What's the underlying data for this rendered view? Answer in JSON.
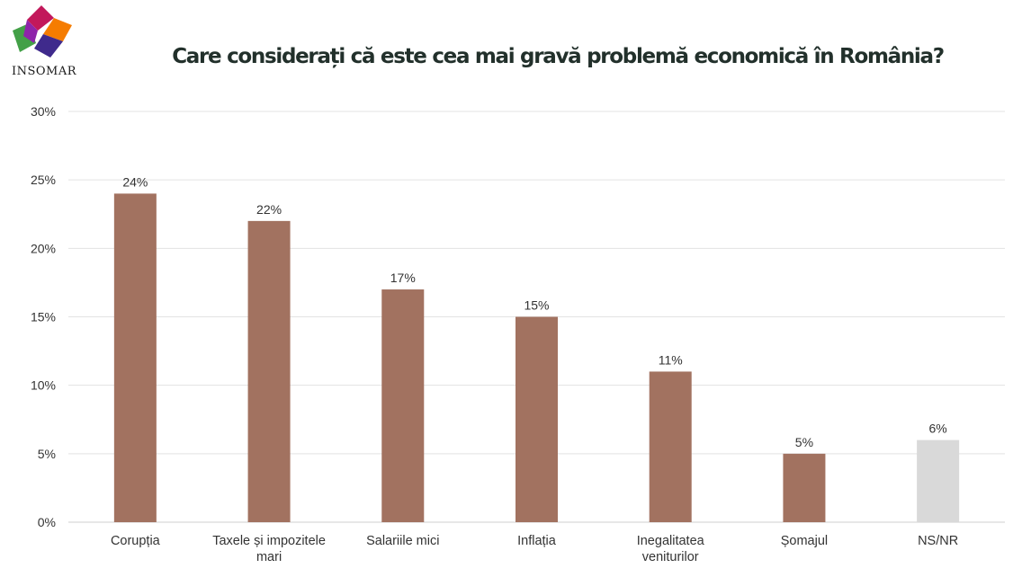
{
  "brand": {
    "name": "INSOMAR"
  },
  "chart_data": {
    "type": "bar",
    "title": "Care considerați că este cea mai gravă problemă economică în România?",
    "categories": [
      [
        "Corupția"
      ],
      [
        "Taxele și impozitele",
        "mari"
      ],
      [
        "Salariile mici"
      ],
      [
        "Inflația"
      ],
      [
        "Inegalitatea",
        "veniturilor"
      ],
      [
        "Șomajul"
      ],
      [
        "NS/NR"
      ]
    ],
    "values": [
      24,
      22,
      17,
      15,
      11,
      5,
      6
    ],
    "data_labels": [
      "24%",
      "22%",
      "17%",
      "15%",
      "11%",
      "5%",
      "6%"
    ],
    "bar_colors": [
      "#a27260",
      "#a27260",
      "#a27260",
      "#a27260",
      "#a27260",
      "#a27260",
      "#d9d9d9"
    ],
    "ylim": [
      0,
      30
    ],
    "yticks": [
      0,
      5,
      10,
      15,
      20,
      25,
      30
    ],
    "ytick_labels": [
      "0%",
      "5%",
      "10%",
      "15%",
      "20%",
      "25%",
      "30%"
    ],
    "xlabel": "",
    "ylabel": "",
    "grid": true,
    "legend": "none"
  }
}
